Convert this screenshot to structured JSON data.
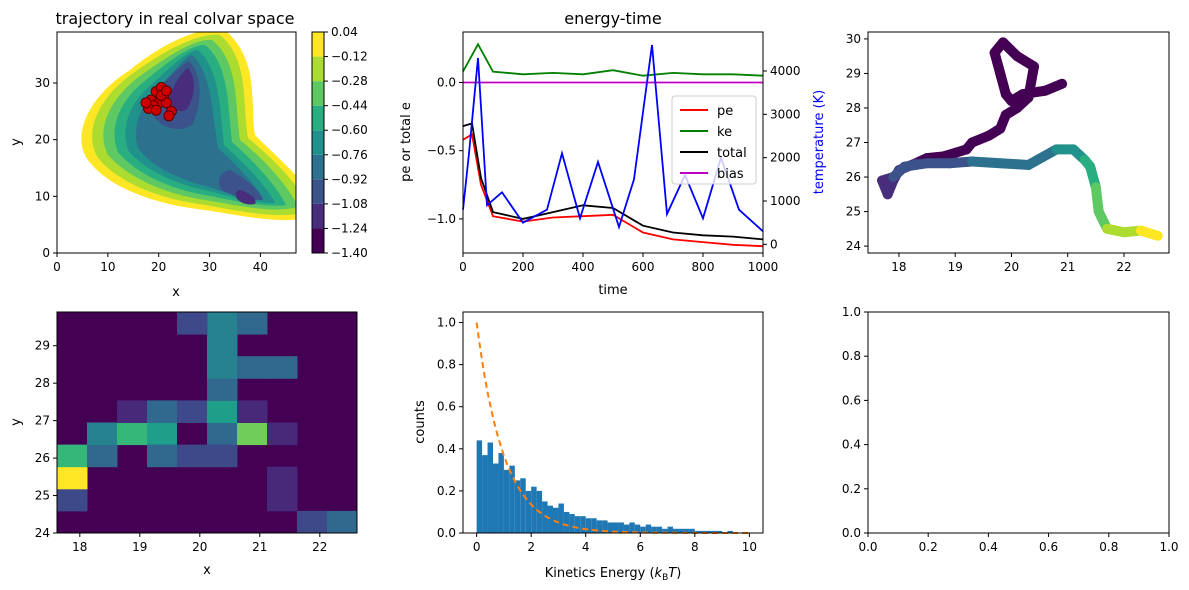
{
  "chart_data": [
    {
      "panel": "top-left",
      "type": "heatmap",
      "title": "trajectory in real colvar space",
      "xlabel": "x",
      "ylabel": "y",
      "xlim": [
        0,
        47
      ],
      "ylim": [
        0,
        39
      ],
      "xticks": [
        0,
        10,
        20,
        30,
        40
      ],
      "yticks": [
        0,
        10,
        20,
        30
      ],
      "colorbar": {
        "ticks": [
          "0.04",
          "−0.12",
          "−0.28",
          "−0.44",
          "−0.60",
          "−0.76",
          "−0.92",
          "−1.08",
          "−1.24",
          "−1.40"
        ],
        "colors": [
          "#440154",
          "#472d7b",
          "#3b528b",
          "#2c728e",
          "#21918c",
          "#28ae80",
          "#5ec962",
          "#addc30",
          "#fde725"
        ]
      },
      "trajectory_points": [
        {
          "x": 18.5,
          "y": 27
        },
        {
          "x": 19.5,
          "y": 28.5
        },
        {
          "x": 20.5,
          "y": 29.2
        },
        {
          "x": 21,
          "y": 27.5
        },
        {
          "x": 20,
          "y": 26.5
        },
        {
          "x": 19,
          "y": 26
        },
        {
          "x": 18,
          "y": 25.5
        },
        {
          "x": 17.5,
          "y": 26.5
        },
        {
          "x": 19.5,
          "y": 25.2
        },
        {
          "x": 21.5,
          "y": 26.5
        },
        {
          "x": 22.5,
          "y": 25
        },
        {
          "x": 22,
          "y": 24.2
        },
        {
          "x": 20.5,
          "y": 27.8
        },
        {
          "x": 21.5,
          "y": 28.6
        }
      ]
    },
    {
      "panel": "top-middle",
      "type": "line",
      "title": "energy-time",
      "xlabel": "time",
      "ylabel": "pe or total e",
      "y2label": "temperature (K)",
      "xlim": [
        0,
        1000
      ],
      "ylim": [
        -1.25,
        0.37
      ],
      "y2lim": [
        -200,
        4900
      ],
      "xticks": [
        0,
        200,
        400,
        600,
        800,
        1000
      ],
      "yticks": [
        "0.0",
        "−0.5",
        "−1.0"
      ],
      "y2ticks": [
        0,
        1000,
        2000,
        3000,
        4000
      ],
      "legend": {
        "position": "right",
        "entries": [
          "pe",
          "ke",
          "total",
          "bias"
        ]
      },
      "series": [
        {
          "name": "pe",
          "color": "#ff0000",
          "x": [
            0,
            30,
            60,
            100,
            200,
            300,
            400,
            500,
            600,
            700,
            800,
            900,
            1000
          ],
          "values": [
            -0.42,
            -0.38,
            -0.75,
            -0.98,
            -1.02,
            -0.99,
            -0.98,
            -0.97,
            -1.1,
            -1.15,
            -1.17,
            -1.19,
            -1.2
          ]
        },
        {
          "name": "ke",
          "color": "#008000",
          "x": [
            0,
            50,
            100,
            200,
            300,
            400,
            500,
            600,
            700,
            800,
            900,
            1000
          ],
          "values": [
            0.08,
            0.28,
            0.08,
            0.06,
            0.07,
            0.06,
            0.09,
            0.05,
            0.07,
            0.06,
            0.06,
            0.05
          ]
        },
        {
          "name": "total",
          "color": "#000000",
          "x": [
            0,
            30,
            60,
            100,
            200,
            300,
            400,
            500,
            600,
            700,
            800,
            900,
            1000
          ],
          "values": [
            -0.32,
            -0.3,
            -0.7,
            -0.95,
            -1.0,
            -0.95,
            -0.9,
            -0.92,
            -1.05,
            -1.1,
            -1.12,
            -1.13,
            -1.15
          ]
        },
        {
          "name": "bias",
          "color": "#c000c0",
          "x": [
            0,
            1000
          ],
          "values": [
            0.0,
            0.0
          ]
        },
        {
          "name": "temperature",
          "color": "#0000ff",
          "axis": "right",
          "x": [
            0,
            20,
            50,
            80,
            130,
            200,
            280,
            330,
            390,
            450,
            520,
            570,
            630,
            680,
            740,
            800,
            860,
            920,
            1000
          ],
          "values": [
            800,
            2100,
            4300,
            900,
            1200,
            500,
            800,
            2100,
            600,
            1900,
            400,
            1500,
            4600,
            700,
            1600,
            600,
            2000,
            800,
            300
          ]
        }
      ]
    },
    {
      "panel": "top-right",
      "type": "scatter",
      "title": "",
      "xlim": [
        17.45,
        22.8
      ],
      "ylim": [
        23.8,
        30.2
      ],
      "xticks": [
        18,
        19,
        20,
        21,
        22
      ],
      "yticks": [
        24,
        25,
        26,
        27,
        28,
        29,
        30
      ],
      "colormap": "viridis",
      "x": [
        20.9,
        20.6,
        20.2,
        20.0,
        19.9,
        19.8,
        19.7,
        19.85,
        20.1,
        20.4,
        20.3,
        20.1,
        19.9,
        19.8,
        19.6,
        19.3,
        19.2,
        19.0,
        18.8,
        18.5,
        18.3,
        18.0,
        17.9,
        17.8,
        17.7,
        17.9,
        18.1,
        18.5,
        18.9,
        19.3,
        19.8,
        20.3,
        20.8,
        21.1,
        21.3,
        21.4,
        21.5,
        21.55,
        21.7,
        22.0,
        22.3,
        22.6
      ],
      "y": [
        28.7,
        28.5,
        28.4,
        28.2,
        28.4,
        29.0,
        29.6,
        29.9,
        29.5,
        29.2,
        28.3,
        28.0,
        27.8,
        27.4,
        27.2,
        27.0,
        26.8,
        26.7,
        26.6,
        26.55,
        26.4,
        26.2,
        25.9,
        25.5,
        25.9,
        26.0,
        26.3,
        26.4,
        26.4,
        26.45,
        26.4,
        26.35,
        26.8,
        26.8,
        26.5,
        26.3,
        25.7,
        25.0,
        24.5,
        24.4,
        24.45,
        24.3
      ]
    },
    {
      "panel": "bottom-left",
      "type": "heatmap",
      "xlabel": "x",
      "ylabel": "y",
      "xlim": [
        17.62,
        22.62
      ],
      "ylim": [
        24,
        29.9
      ],
      "xticks": [
        18,
        19,
        20,
        21,
        22
      ],
      "yticks": [
        24,
        25,
        26,
        27,
        28,
        29
      ],
      "cells": [
        {
          "col": 0,
          "row": 1,
          "level": 0.18
        },
        {
          "col": 0,
          "row": 2,
          "level": 0.98
        },
        {
          "col": 0,
          "row": 3,
          "level": 0.7
        },
        {
          "col": 1,
          "row": 3,
          "level": 0.3
        },
        {
          "col": 1,
          "row": 4,
          "level": 0.42
        },
        {
          "col": 2,
          "row": 4,
          "level": 0.68
        },
        {
          "col": 3,
          "row": 4,
          "level": 0.5
        },
        {
          "col": 4,
          "row": 4,
          "level": 0.0
        },
        {
          "col": 5,
          "row": 4,
          "level": 0.28
        },
        {
          "col": 6,
          "row": 4,
          "level": 0.78
        },
        {
          "col": 7,
          "row": 4,
          "level": 0.15
        },
        {
          "col": 3,
          "row": 3,
          "level": 0.28
        },
        {
          "col": 4,
          "row": 3,
          "level": 0.25
        },
        {
          "col": 5,
          "row": 3,
          "level": 0.17
        },
        {
          "col": 2,
          "row": 5,
          "level": 0.12
        },
        {
          "col": 3,
          "row": 5,
          "level": 0.3
        },
        {
          "col": 4,
          "row": 5,
          "level": 0.22
        },
        {
          "col": 5,
          "row": 5,
          "level": 0.5
        },
        {
          "col": 6,
          "row": 5,
          "level": 0.13
        },
        {
          "col": 5,
          "row": 6,
          "level": 0.3
        },
        {
          "col": 5,
          "row": 7,
          "level": 0.45
        },
        {
          "col": 6,
          "row": 7,
          "level": 0.35
        },
        {
          "col": 7,
          "row": 7,
          "level": 0.35
        },
        {
          "col": 5,
          "row": 8,
          "level": 0.45
        },
        {
          "col": 5,
          "row": 9,
          "level": 0.45
        },
        {
          "col": 4,
          "row": 9,
          "level": 0.25
        },
        {
          "col": 6,
          "row": 9,
          "level": 0.3
        },
        {
          "col": 7,
          "row": 2,
          "level": 0.12
        },
        {
          "col": 7,
          "row": 1,
          "level": 0.15
        },
        {
          "col": 8,
          "row": 0,
          "level": 0.25
        },
        {
          "col": 9,
          "row": 0,
          "level": 0.35
        }
      ],
      "grid": {
        "cols": 10,
        "rows": 10
      }
    },
    {
      "panel": "bottom-middle",
      "type": "bar",
      "xlabel": "Kinetics Energy ($k_\\mathrm{B}T$)",
      "ylabel": "counts",
      "xlim": [
        -0.5,
        10.5
      ],
      "ylim": [
        0,
        1.05
      ],
      "xticks": [
        0,
        2,
        4,
        6,
        8,
        10
      ],
      "yticks": [
        "0.0",
        "0.2",
        "0.4",
        "0.6",
        "0.8",
        "1.0"
      ],
      "bin_width": 0.2,
      "values": [
        0.44,
        0.37,
        0.43,
        0.33,
        0.38,
        0.3,
        0.32,
        0.25,
        0.26,
        0.2,
        0.22,
        0.2,
        0.15,
        0.13,
        0.12,
        0.14,
        0.1,
        0.09,
        0.08,
        0.08,
        0.07,
        0.07,
        0.06,
        0.06,
        0.05,
        0.05,
        0.05,
        0.04,
        0.05,
        0.04,
        0.03,
        0.04,
        0.03,
        0.03,
        0.02,
        0.03,
        0.02,
        0.02,
        0.02,
        0.02,
        0.01,
        0.01,
        0.01,
        0.01,
        0.01,
        0.0,
        0.01,
        0.0,
        0.0,
        0.0
      ],
      "curve": {
        "color": "#ff7f0e",
        "style": "dashed",
        "function": "exp(-x)"
      }
    },
    {
      "panel": "bottom-right",
      "type": "line",
      "xlim": [
        0,
        1
      ],
      "ylim": [
        0,
        1
      ],
      "xticks": [
        "0.0",
        "0.2",
        "0.4",
        "0.6",
        "0.8",
        "1.0"
      ],
      "yticks": [
        "0.0",
        "0.2",
        "0.4",
        "0.6",
        "0.8",
        "1.0"
      ]
    }
  ]
}
